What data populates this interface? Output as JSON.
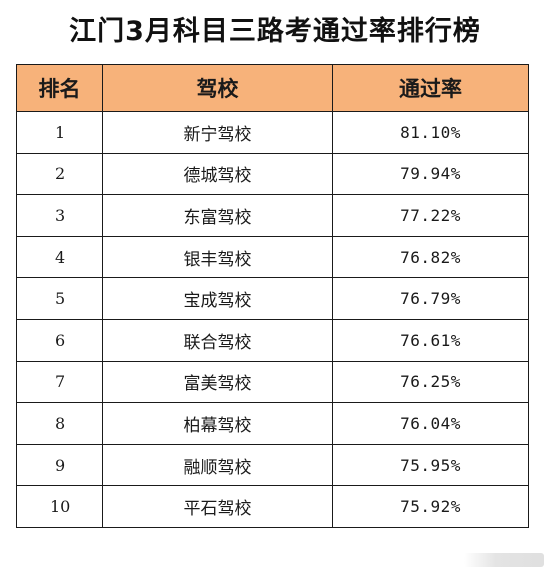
{
  "title": "江门3月科目三路考通过率排行榜",
  "table": {
    "headers": [
      "排名",
      "驾校",
      "通过率"
    ],
    "rows": [
      {
        "rank": "1",
        "school": "新宁驾校",
        "rate": "81.10%"
      },
      {
        "rank": "2",
        "school": "德城驾校",
        "rate": "79.94%"
      },
      {
        "rank": "3",
        "school": "东富驾校",
        "rate": "77.22%"
      },
      {
        "rank": "4",
        "school": "银丰驾校",
        "rate": "76.82%"
      },
      {
        "rank": "5",
        "school": "宝成驾校",
        "rate": "76.79%"
      },
      {
        "rank": "6",
        "school": "联合驾校",
        "rate": "76.61%"
      },
      {
        "rank": "7",
        "school": "富美驾校",
        "rate": "76.25%"
      },
      {
        "rank": "8",
        "school": "柏幕驾校",
        "rate": "76.04%"
      },
      {
        "rank": "9",
        "school": "融顺驾校",
        "rate": "75.95%"
      },
      {
        "rank": "10",
        "school": "平石驾校",
        "rate": "75.92%"
      }
    ]
  },
  "colors": {
    "header_background": "#f7b27a",
    "border": "#1a1a1a",
    "text": "#1a1a1a"
  }
}
